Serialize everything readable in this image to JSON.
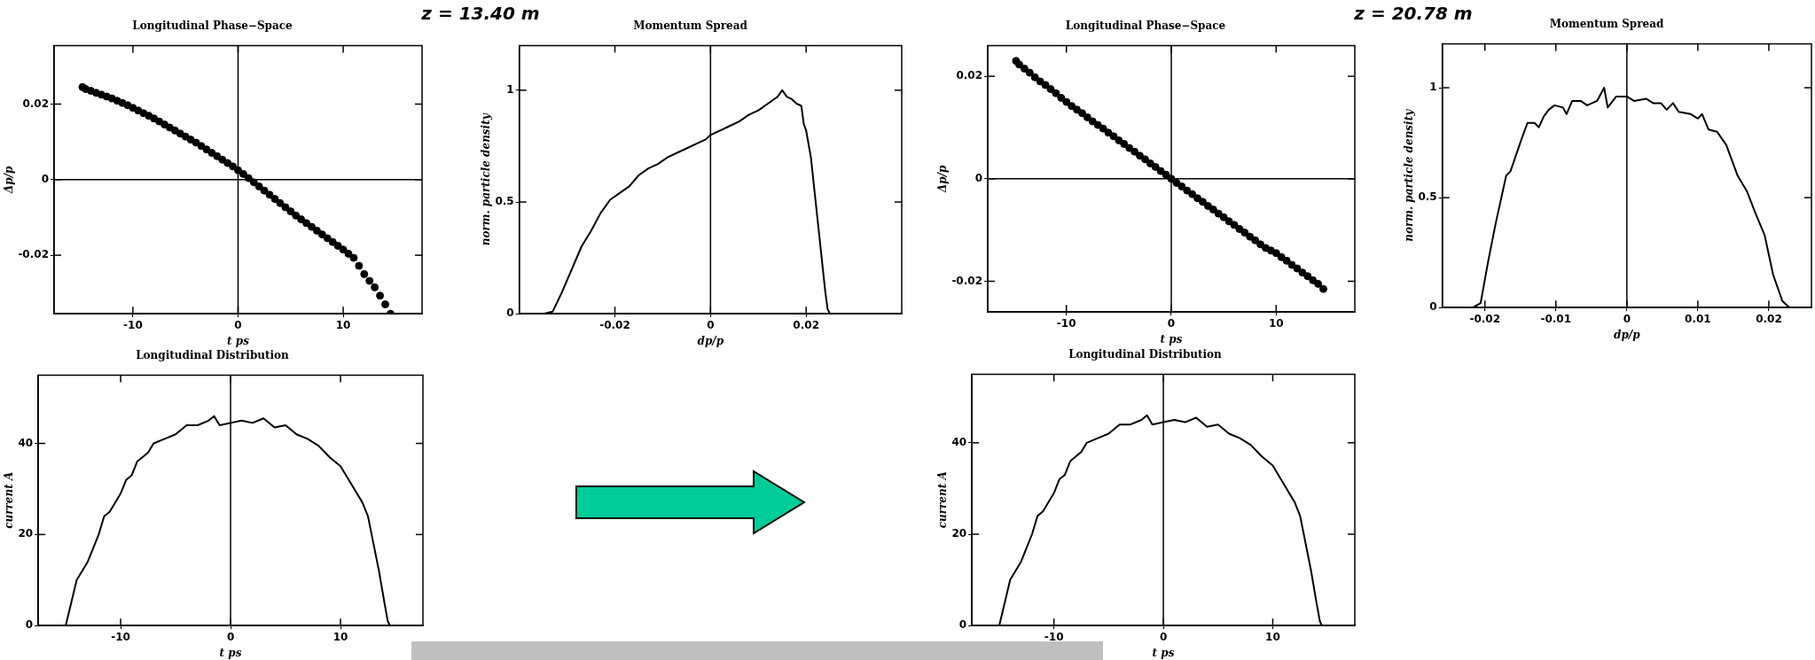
{
  "chart_data": [
    {
      "type": "scatter",
      "title": "Longitudinal Phase−Space",
      "xlabel": "t ps",
      "ylabel": "Δp/p",
      "marker": "circle",
      "color": "#000000",
      "annotations": [
        "z = 13.40 m"
      ],
      "x": [
        -14.8,
        -14.5,
        -14,
        -13.5,
        -13,
        -12.5,
        -12,
        -11.5,
        -11,
        -10.5,
        -10,
        -9.5,
        -9,
        -8.5,
        -8,
        -7.5,
        -7,
        -6.5,
        -6,
        -5.5,
        -5,
        -4.5,
        -4,
        -3.5,
        -3,
        -2.5,
        -2,
        -1.5,
        -1,
        -0.5,
        0,
        0.5,
        1,
        1.5,
        2,
        2.5,
        3,
        3.5,
        4,
        4.5,
        5,
        5.5,
        6,
        6.5,
        7,
        7.5,
        8,
        8.5,
        9,
        9.5,
        10,
        10.5,
        11,
        11.5,
        12,
        12.5,
        13,
        13.5,
        14,
        14.5
      ],
      "values": [
        0.0245,
        0.024,
        0.0235,
        0.023,
        0.0225,
        0.022,
        0.0215,
        0.0209,
        0.0203,
        0.0197,
        0.019,
        0.0183,
        0.0176,
        0.0169,
        0.0162,
        0.0154,
        0.0146,
        0.0138,
        0.013,
        0.0122,
        0.0114,
        0.0106,
        0.0098,
        0.0089,
        0.008,
        0.0071,
        0.0062,
        0.0053,
        0.0044,
        0.0035,
        0.0025,
        0.0015,
        0.0004,
        -0.0007,
        -0.0018,
        -0.0029,
        -0.004,
        -0.0051,
        -0.0062,
        -0.0073,
        -0.0084,
        -0.0095,
        -0.0105,
        -0.0115,
        -0.0125,
        -0.0135,
        -0.0145,
        -0.0155,
        -0.0165,
        -0.0175,
        -0.0185,
        -0.0196,
        -0.0207,
        -0.0228,
        -0.025,
        -0.0268,
        -0.0285,
        -0.0307,
        -0.033,
        -0.0355
      ],
      "xlim": [
        -17.5,
        17.5
      ],
      "ylim": [
        -0.0355,
        0.0355
      ],
      "xticks": [
        -10,
        0,
        10
      ],
      "yticks": [
        -0.02,
        0,
        0.02
      ],
      "ref_lines": [
        {
          "axis": "x",
          "value": 0
        },
        {
          "axis": "y",
          "value": 0
        }
      ]
    },
    {
      "type": "line",
      "title": "Momentum Spread",
      "xlabel": "dp/p",
      "ylabel": "norm. particle density",
      "color": "#000000",
      "x": [
        -0.035,
        -0.033,
        -0.031,
        -0.029,
        -0.027,
        -0.025,
        -0.023,
        -0.021,
        -0.019,
        -0.017,
        -0.015,
        -0.013,
        -0.011,
        -0.009,
        -0.007,
        -0.005,
        -0.003,
        -0.001,
        0,
        0.002,
        0.004,
        0.006,
        0.008,
        0.01,
        0.012,
        0.014,
        0.015,
        0.016,
        0.017,
        0.018,
        0.019,
        0.0195,
        0.02,
        0.021,
        0.022,
        0.023,
        0.024,
        0.0245,
        0.025
      ],
      "values": [
        0,
        0.01,
        0.1,
        0.2,
        0.3,
        0.37,
        0.45,
        0.51,
        0.54,
        0.57,
        0.62,
        0.65,
        0.67,
        0.7,
        0.72,
        0.74,
        0.76,
        0.78,
        0.8,
        0.82,
        0.84,
        0.86,
        0.89,
        0.91,
        0.94,
        0.97,
        1,
        0.97,
        0.96,
        0.94,
        0.93,
        0.85,
        0.82,
        0.7,
        0.5,
        0.3,
        0.1,
        0.02,
        0
      ],
      "xlim": [
        -0.04,
        0.04
      ],
      "ylim": [
        0,
        1.2
      ],
      "xticks": [
        -0.02,
        0,
        0.02
      ],
      "yticks": [
        0,
        0.5,
        1
      ],
      "ref_lines": [
        {
          "axis": "x",
          "value": 0
        }
      ]
    },
    {
      "type": "scatter",
      "title": "Longitudinal Phase−Space",
      "xlabel": "t ps",
      "ylabel": "Δp/p",
      "marker": "circle",
      "color": "#000000",
      "annotations": [
        "z = 20.78 m"
      ],
      "x": [
        -14.8,
        -14.5,
        -14,
        -13.5,
        -13,
        -12.5,
        -12,
        -11.5,
        -11,
        -10.5,
        -10,
        -9.5,
        -9,
        -8.5,
        -8,
        -7.5,
        -7,
        -6.5,
        -6,
        -5.5,
        -5,
        -4.5,
        -4,
        -3.5,
        -3,
        -2.5,
        -2,
        -1.5,
        -1,
        -0.5,
        0,
        0.5,
        1,
        1.5,
        2,
        2.5,
        3,
        3.5,
        4,
        4.5,
        5,
        5.5,
        6,
        6.5,
        7,
        7.5,
        8,
        8.5,
        9,
        9.5,
        10,
        10.5,
        11,
        11.5,
        12,
        12.5,
        13,
        13.5,
        14,
        14.5
      ],
      "values": [
        0.023,
        0.0223,
        0.0215,
        0.0207,
        0.0198,
        0.019,
        0.0183,
        0.0175,
        0.0167,
        0.0158,
        0.015,
        0.0142,
        0.0135,
        0.0128,
        0.012,
        0.0112,
        0.0105,
        0.0098,
        0.009,
        0.0083,
        0.0075,
        0.0068,
        0.006,
        0.0053,
        0.0045,
        0.0038,
        0.003,
        0.0023,
        0.0015,
        0.0008,
        0,
        -0.0008,
        -0.0015,
        -0.0023,
        -0.003,
        -0.0038,
        -0.0045,
        -0.0053,
        -0.006,
        -0.0068,
        -0.0075,
        -0.0083,
        -0.009,
        -0.0098,
        -0.0105,
        -0.0113,
        -0.012,
        -0.0128,
        -0.0135,
        -0.014,
        -0.0145,
        -0.0153,
        -0.016,
        -0.0168,
        -0.0175,
        -0.0183,
        -0.019,
        -0.0198,
        -0.0205,
        -0.0215
      ],
      "xlim": [
        -17.5,
        17.5
      ],
      "ylim": [
        -0.026,
        0.026
      ],
      "xticks": [
        -10,
        0,
        10
      ],
      "yticks": [
        -0.02,
        0,
        0.02
      ],
      "ref_lines": [
        {
          "axis": "x",
          "value": 0
        },
        {
          "axis": "y",
          "value": 0
        }
      ]
    },
    {
      "type": "line",
      "title": "Momentum Spread",
      "xlabel": "dp/p",
      "ylabel": "norm. particle density",
      "color": "#000000",
      "x": [
        -0.0217,
        -0.0206,
        -0.0196,
        -0.0185,
        -0.017,
        -0.0164,
        -0.0148,
        -0.014,
        -0.013,
        -0.0124,
        -0.0117,
        -0.011,
        -0.0102,
        -0.009,
        -0.0085,
        -0.0077,
        -0.0065,
        -0.0056,
        -0.0042,
        -0.0032,
        -0.0027,
        -0.0015,
        -0.0006,
        0,
        0.001,
        0.0027,
        0.0037,
        0.0048,
        0.0056,
        0.0065,
        0.0073,
        0.009,
        0.01,
        0.0106,
        0.0115,
        0.0127,
        0.014,
        0.0156,
        0.0169,
        0.0181,
        0.0194,
        0.0206,
        0.0219,
        0.0229
      ],
      "values": [
        0,
        0.02,
        0.2,
        0.38,
        0.6,
        0.62,
        0.77,
        0.84,
        0.84,
        0.82,
        0.87,
        0.9,
        0.92,
        0.91,
        0.88,
        0.94,
        0.94,
        0.92,
        0.94,
        1,
        0.91,
        0.96,
        0.96,
        0.96,
        0.94,
        0.95,
        0.93,
        0.93,
        0.9,
        0.93,
        0.89,
        0.88,
        0.86,
        0.88,
        0.81,
        0.8,
        0.74,
        0.6,
        0.53,
        0.43,
        0.33,
        0.15,
        0.03,
        0
      ],
      "xlim": [
        -0.026,
        0.026
      ],
      "ylim": [
        0,
        1.2
      ],
      "xticks": [
        -0.02,
        -0.01,
        0,
        0.01,
        0.02
      ],
      "yticks": [
        0,
        0.5,
        1
      ],
      "ref_lines": [
        {
          "axis": "x",
          "value": 0
        }
      ]
    },
    {
      "type": "line",
      "title": "Longitudinal Distribution",
      "xlabel": "t ps",
      "ylabel": "current A",
      "color": "#000000",
      "x": [
        -15,
        -14.5,
        -14,
        -13,
        -12.5,
        -12,
        -11.5,
        -11,
        -10,
        -9.5,
        -9,
        -8.5,
        -8,
        -7.5,
        -7,
        -6,
        -5,
        -4,
        -3,
        -2,
        -1.5,
        -1,
        0,
        1,
        2,
        3,
        4,
        5,
        6,
        7,
        8,
        9,
        10,
        11,
        12,
        12.5,
        13,
        13.5,
        14,
        14.3,
        14.5
      ],
      "values": [
        0,
        5,
        10,
        14,
        17,
        20,
        24,
        25,
        29,
        32,
        33,
        36,
        37,
        38,
        40,
        41,
        42,
        44,
        44,
        45,
        46,
        44,
        44.5,
        45,
        44.5,
        45.5,
        43.5,
        44,
        42,
        41,
        39.5,
        37,
        35,
        31,
        27,
        24,
        18,
        12,
        5,
        1,
        0
      ],
      "xlim": [
        -17.5,
        17.5
      ],
      "ylim": [
        0,
        55
      ],
      "xticks": [
        -10,
        0,
        10
      ],
      "yticks": [
        0,
        20,
        40
      ],
      "ref_lines": [
        {
          "axis": "x",
          "value": 0
        }
      ]
    },
    {
      "type": "line",
      "title": "Longitudinal Distribution",
      "xlabel": "t ps",
      "ylabel": "current A",
      "color": "#000000",
      "x": [
        -15,
        -14.5,
        -14,
        -13,
        -12.5,
        -12,
        -11.5,
        -11,
        -10,
        -9.5,
        -9,
        -8.5,
        -8,
        -7.5,
        -7,
        -6,
        -5,
        -4,
        -3,
        -2,
        -1.5,
        -1,
        0,
        1,
        2,
        3,
        4,
        5,
        6,
        7,
        8,
        9,
        10,
        11,
        12,
        12.5,
        13,
        13.5,
        14,
        14.3,
        14.5
      ],
      "values": [
        0,
        5,
        10,
        14,
        17,
        20,
        24,
        25,
        29,
        32,
        33,
        36,
        37,
        38,
        40,
        41,
        42,
        44,
        44,
        45,
        46,
        44,
        44.5,
        45,
        44.5,
        45.5,
        43.5,
        44,
        42,
        41,
        39.5,
        37,
        35,
        31,
        27,
        24,
        18,
        12,
        5,
        1,
        0
      ],
      "xlim": [
        -17.5,
        17.5
      ],
      "ylim": [
        0,
        55
      ],
      "xticks": [
        -10,
        0,
        10
      ],
      "yticks": [
        0,
        20,
        40
      ],
      "ref_lines": [
        {
          "axis": "x",
          "value": 0
        }
      ]
    }
  ]
}
